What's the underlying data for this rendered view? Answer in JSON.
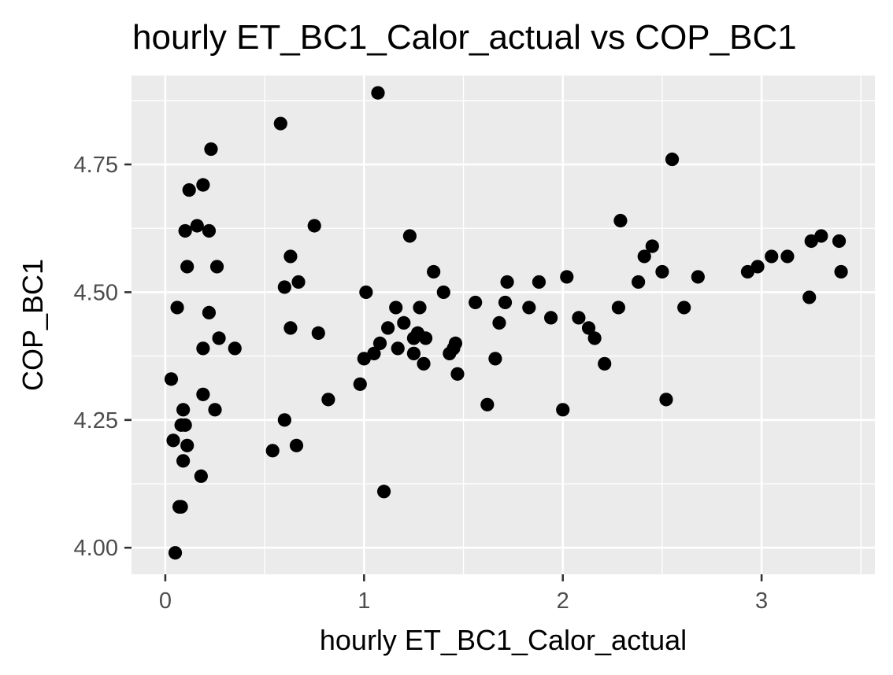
{
  "chart_data": {
    "type": "scatter",
    "title": "hourly ET_BC1_Calor_actual vs COP_BC1",
    "xlabel": "hourly ET_BC1_Calor_actual",
    "ylabel": "COP_BC1",
    "xlim": [
      -0.17,
      3.57
    ],
    "ylim": [
      3.948,
      4.924
    ],
    "x_ticks": [
      0,
      1,
      2,
      3
    ],
    "x_tick_labels": [
      "0",
      "1",
      "2",
      "3"
    ],
    "y_ticks": [
      4.0,
      4.25,
      4.5,
      4.75
    ],
    "y_tick_labels": [
      "4.00",
      "4.25",
      "4.50",
      "4.75"
    ],
    "grid": true,
    "legend": "none",
    "colors": {
      "panel": "#ebebeb",
      "grid": "#ffffff",
      "point": "#000000",
      "tick_label": "#4d4d4d"
    },
    "points": [
      [
        0.03,
        4.33
      ],
      [
        0.04,
        4.21
      ],
      [
        0.05,
        3.99
      ],
      [
        0.06,
        4.47
      ],
      [
        0.07,
        4.08
      ],
      [
        0.08,
        4.08
      ],
      [
        0.08,
        4.24
      ],
      [
        0.09,
        4.17
      ],
      [
        0.09,
        4.27
      ],
      [
        0.1,
        4.62
      ],
      [
        0.1,
        4.24
      ],
      [
        0.11,
        4.55
      ],
      [
        0.11,
        4.2
      ],
      [
        0.12,
        4.7
      ],
      [
        0.16,
        4.63
      ],
      [
        0.18,
        4.14
      ],
      [
        0.19,
        4.71
      ],
      [
        0.19,
        4.39
      ],
      [
        0.19,
        4.3
      ],
      [
        0.22,
        4.62
      ],
      [
        0.22,
        4.46
      ],
      [
        0.23,
        4.78
      ],
      [
        0.25,
        4.27
      ],
      [
        0.26,
        4.55
      ],
      [
        0.27,
        4.41
      ],
      [
        0.35,
        4.39
      ],
      [
        0.54,
        4.19
      ],
      [
        0.58,
        4.83
      ],
      [
        0.6,
        4.51
      ],
      [
        0.6,
        4.25
      ],
      [
        0.63,
        4.57
      ],
      [
        0.63,
        4.43
      ],
      [
        0.66,
        4.2
      ],
      [
        0.67,
        4.52
      ],
      [
        0.75,
        4.63
      ],
      [
        0.77,
        4.42
      ],
      [
        0.82,
        4.29
      ],
      [
        0.98,
        4.32
      ],
      [
        1.0,
        4.37
      ],
      [
        1.01,
        4.5
      ],
      [
        1.05,
        4.38
      ],
      [
        1.07,
        4.89
      ],
      [
        1.08,
        4.4
      ],
      [
        1.1,
        4.11
      ],
      [
        1.12,
        4.43
      ],
      [
        1.16,
        4.47
      ],
      [
        1.17,
        4.39
      ],
      [
        1.2,
        4.44
      ],
      [
        1.23,
        4.61
      ],
      [
        1.25,
        4.38
      ],
      [
        1.25,
        4.41
      ],
      [
        1.27,
        4.42
      ],
      [
        1.28,
        4.47
      ],
      [
        1.3,
        4.36
      ],
      [
        1.31,
        4.41
      ],
      [
        1.35,
        4.54
      ],
      [
        1.4,
        4.5
      ],
      [
        1.43,
        4.38
      ],
      [
        1.45,
        4.39
      ],
      [
        1.46,
        4.4
      ],
      [
        1.47,
        4.34
      ],
      [
        1.56,
        4.48
      ],
      [
        1.62,
        4.28
      ],
      [
        1.66,
        4.37
      ],
      [
        1.68,
        4.44
      ],
      [
        1.71,
        4.48
      ],
      [
        1.72,
        4.52
      ],
      [
        1.83,
        4.47
      ],
      [
        1.88,
        4.52
      ],
      [
        1.94,
        4.45
      ],
      [
        2.0,
        4.27
      ],
      [
        2.02,
        4.53
      ],
      [
        2.08,
        4.45
      ],
      [
        2.13,
        4.43
      ],
      [
        2.16,
        4.41
      ],
      [
        2.21,
        4.36
      ],
      [
        2.28,
        4.47
      ],
      [
        2.29,
        4.64
      ],
      [
        2.38,
        4.52
      ],
      [
        2.41,
        4.57
      ],
      [
        2.45,
        4.59
      ],
      [
        2.5,
        4.54
      ],
      [
        2.52,
        4.29
      ],
      [
        2.55,
        4.76
      ],
      [
        2.61,
        4.47
      ],
      [
        2.68,
        4.53
      ],
      [
        2.93,
        4.54
      ],
      [
        2.98,
        4.55
      ],
      [
        3.05,
        4.57
      ],
      [
        3.13,
        4.57
      ],
      [
        3.24,
        4.49
      ],
      [
        3.25,
        4.6
      ],
      [
        3.3,
        4.61
      ],
      [
        3.39,
        4.6
      ],
      [
        3.4,
        4.54
      ]
    ]
  }
}
